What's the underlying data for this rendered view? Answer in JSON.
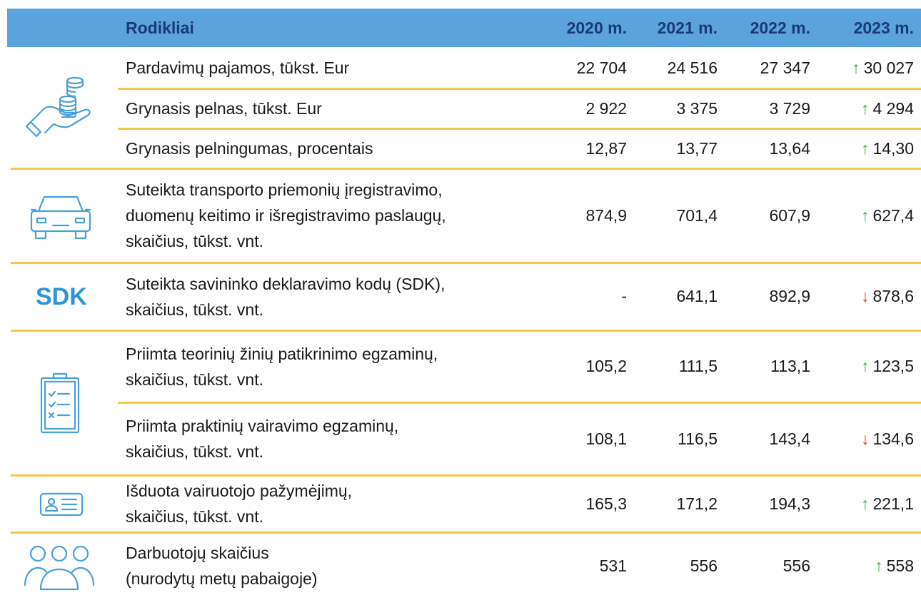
{
  "header": {
    "label": "Rodikliai",
    "years": [
      "2020 m.",
      "2021 m.",
      "2022 m.",
      "2023 m."
    ]
  },
  "sdk_icon": "SDK",
  "rows": [
    {
      "label": [
        "Pardavimų pajamos, tūkst. Eur"
      ],
      "values": [
        "22 704",
        "24 516",
        "27 347",
        "30 027"
      ],
      "trend": {
        "arrow": "↑",
        "color": "#3aa94a"
      }
    },
    {
      "label": [
        "Grynasis pelnas, tūkst. Eur"
      ],
      "values": [
        "2 922",
        "3 375",
        "3 729",
        "4 294"
      ],
      "trend": {
        "arrow": "↑",
        "color": "#3aa94a"
      }
    },
    {
      "label": [
        "Grynasis pelningumas, procentais"
      ],
      "values": [
        "12,87",
        "13,77",
        "13,64",
        "14,30"
      ],
      "trend": {
        "arrow": "↑",
        "color": "#3aa94a"
      }
    },
    {
      "label": [
        "Suteikta transporto priemonių įregistravimo,",
        "duomenų keitimo ir išregistravimo paslaugų,",
        "skaičius, tūkst. vnt."
      ],
      "values": [
        "874,9",
        "701,4",
        "607,9",
        "627,4"
      ],
      "trend": {
        "arrow": "↑",
        "color": "#3aa94a"
      }
    },
    {
      "label": [
        "Suteikta savininko deklaravimo kodų (SDK),",
        "skaičius, tūkst. vnt."
      ],
      "values": [
        "-",
        "641,1",
        "892,9",
        "878,6"
      ],
      "trend": {
        "arrow": "↓",
        "color": "#e0332b"
      }
    },
    {
      "label": [
        "Priimta teorinių žinių patikrinimo egzaminų,",
        "skaičius, tūkst. vnt."
      ],
      "values": [
        "105,2",
        "111,5",
        "113,1",
        "123,5"
      ],
      "trend": {
        "arrow": "↑",
        "color": "#3aa94a"
      }
    },
    {
      "label": [
        "Priimta praktinių vairavimo egzaminų,",
        "skaičius, tūkst. vnt."
      ],
      "values": [
        "108,1",
        "116,5",
        "143,4",
        "134,6"
      ],
      "trend": {
        "arrow": "↓",
        "color": "#e0332b"
      }
    },
    {
      "label": [
        "Išduota vairuotojo pažymėjimų,",
        "skaičius, tūkst. vnt."
      ],
      "values": [
        "165,3",
        "171,2",
        "194,3",
        "221,1"
      ],
      "trend": {
        "arrow": "↑",
        "color": "#3aa94a"
      }
    },
    {
      "label": [
        "Darbuotojų skaičius",
        "(nurodytų metų pabaigoje)"
      ],
      "values": [
        "531",
        "556",
        "556",
        "558"
      ],
      "trend": {
        "arrow": "↑",
        "color": "#3aa94a"
      }
    }
  ]
}
